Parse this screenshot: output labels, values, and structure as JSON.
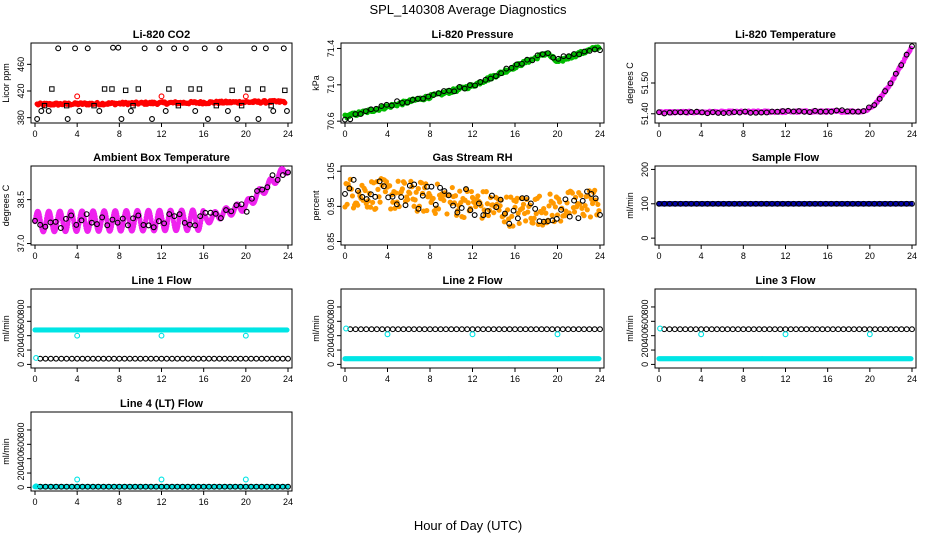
{
  "figure": {
    "title": "SPL_140308  Average Diagnostics",
    "xlabel": "Hour of Day (UTC)"
  },
  "chart_data": [
    {
      "type": "scatter",
      "title": "Li-820 CO2",
      "xlabel": "",
      "ylabel": "Licor ppm",
      "xlim": [
        0,
        24
      ],
      "ylim": [
        372,
        492
      ],
      "xticks": [
        "0",
        "4",
        "8",
        "12",
        "16",
        "20",
        "24"
      ],
      "yticks": [
        {
          "value": 380,
          "label": "380"
        },
        {
          "value": 420,
          "label": "420"
        },
        {
          "value": 460,
          "label": "460"
        }
      ],
      "series": [
        {
          "kind": "dense",
          "color": "#ff0000",
          "marker": "filled-circle",
          "x": [
            0.2,
            23.8
          ],
          "y": [
            400,
            404
          ],
          "noise": 2
        },
        {
          "kind": "points",
          "color": "#000000",
          "marker": "open-circle",
          "x": [
            2.2,
            3.8,
            5.0,
            7.4,
            7.9,
            10.4,
            11.8,
            13.2,
            14.3,
            16.1,
            17.5,
            20.8,
            21.9,
            23.6,
            0.6,
            1.3,
            4.2,
            6.1,
            9.1,
            12.4,
            15.2,
            18.3,
            22.6,
            23.9,
            0.2,
            3.1,
            8.2,
            11.1,
            16.4,
            19.2,
            21.2
          ],
          "y": [
            484,
            484,
            484,
            485,
            485,
            484,
            484,
            484,
            484,
            484,
            484,
            484,
            484,
            484,
            390,
            390,
            390,
            390,
            390,
            390,
            390,
            390,
            390,
            390,
            378,
            378,
            378,
            378,
            378,
            378,
            378
          ]
        },
        {
          "kind": "points",
          "color": "#000000",
          "marker": "open-square",
          "x": [
            1.6,
            6.6,
            7.3,
            8.6,
            9.8,
            12.7,
            14.8,
            15.6,
            18.7,
            20.2,
            21.6,
            23.7,
            0.9,
            3.0,
            5.6,
            9.3,
            13.6,
            17.2,
            19.6,
            22.4
          ],
          "y": [
            423,
            423,
            423,
            421,
            423,
            423,
            423,
            423,
            421,
            423,
            423,
            421,
            398,
            398,
            398,
            398,
            398,
            398,
            398,
            398
          ]
        },
        {
          "kind": "points",
          "color": "#ff0000",
          "marker": "open-circle",
          "x": [
            4.0,
            12.0,
            20.0
          ],
          "y": [
            412,
            412,
            412
          ]
        }
      ]
    },
    {
      "type": "scatter",
      "title": "Li-820 Pressure",
      "xlabel": "",
      "ylabel": "kPa",
      "xlim": [
        0,
        24
      ],
      "ylim": [
        70.58,
        71.46
      ],
      "xticks": [
        "0",
        "4",
        "8",
        "12",
        "16",
        "20",
        "24"
      ],
      "yticks": [
        {
          "value": 70.6,
          "label": "70.6"
        },
        {
          "value": 71.0,
          "label": "71.0"
        },
        {
          "value": 71.4,
          "label": "71.4"
        }
      ],
      "series": [
        {
          "kind": "dense",
          "color": "#00bb00",
          "marker": "filled-circle",
          "x": [
            0,
            4,
            8,
            12,
            16,
            19,
            20,
            21,
            24
          ],
          "y": [
            70.65,
            70.76,
            70.87,
            70.99,
            71.2,
            71.35,
            71.25,
            71.3,
            71.42
          ],
          "noise": 0.02
        },
        {
          "kind": "sparse",
          "color": "#000000",
          "marker": "open-circle",
          "x": [
            0,
            4,
            8,
            12,
            16,
            19,
            20,
            21,
            24
          ],
          "y": [
            70.62,
            70.78,
            70.88,
            71.0,
            71.2,
            71.36,
            71.27,
            71.32,
            71.4
          ],
          "n": 50,
          "noise": 0.02
        }
      ]
    },
    {
      "type": "scatter",
      "title": "Li-820 Temperature",
      "xlabel": "",
      "ylabel": "degrees C",
      "xlim": [
        0,
        24
      ],
      "ylim": [
        51.37,
        51.63
      ],
      "xticks": [
        "0",
        "4",
        "8",
        "12",
        "16",
        "20",
        "24"
      ],
      "yticks": [
        {
          "value": 51.4,
          "label": "51.40"
        },
        {
          "value": 51.5,
          "label": "51.50"
        }
      ],
      "series": [
        {
          "kind": "dense",
          "color": "#ee22ee",
          "marker": "filled-circle",
          "x": [
            0,
            19.5,
            20.5,
            22,
            23,
            24
          ],
          "y": [
            51.405,
            51.408,
            51.43,
            51.5,
            51.56,
            51.62
          ],
          "noise": 0.003
        },
        {
          "kind": "sparse",
          "color": "#000000",
          "marker": "open-circle",
          "x": [
            0,
            19.5,
            20.5,
            22,
            23,
            24
          ],
          "y": [
            51.403,
            51.41,
            51.43,
            51.5,
            51.56,
            51.62
          ],
          "n": 48,
          "noise": 0.003
        }
      ]
    },
    {
      "type": "scatter",
      "title": "Ambient Box Temperature",
      "xlabel": "",
      "ylabel": "degrees C",
      "xlim": [
        0,
        24
      ],
      "ylim": [
        36.95,
        39.65
      ],
      "xticks": [
        "0",
        "4",
        "8",
        "12",
        "16",
        "20",
        "24"
      ],
      "yticks": [
        {
          "value": 37.0,
          "label": "37.0"
        },
        {
          "value": 38.5,
          "label": "38.5"
        }
      ],
      "series": [
        {
          "kind": "wave",
          "color": "#ee22ee",
          "marker": "filled-circle",
          "x": [
            0,
            16,
            20,
            24
          ],
          "y": [
            37.75,
            37.8,
            38.3,
            39.6
          ],
          "amplitude": 0.35,
          "period": 1.05,
          "damp_after": 16
        },
        {
          "kind": "sparse",
          "color": "#000000",
          "marker": "open-circle",
          "x": [
            0,
            16,
            20,
            24
          ],
          "y": [
            37.75,
            37.8,
            38.3,
            39.6
          ],
          "n": 50,
          "noise": 0.25
        }
      ]
    },
    {
      "type": "scatter",
      "title": "Gas Stream RH",
      "xlabel": "",
      "ylabel": "percent",
      "xlim": [
        0,
        24
      ],
      "ylim": [
        0.84,
        1.065
      ],
      "xticks": [
        "0",
        "4",
        "8",
        "12",
        "16",
        "20",
        "24"
      ],
      "yticks": [
        {
          "value": 0.85,
          "label": "0.85"
        },
        {
          "value": 0.95,
          "label": "0.95"
        },
        {
          "value": 1.05,
          "label": "1.05"
        }
      ],
      "series": [
        {
          "kind": "dense",
          "color": "#ff9900",
          "marker": "filled-circle",
          "x": [
            0,
            6,
            12,
            16,
            20,
            24
          ],
          "y": [
            0.99,
            0.98,
            0.96,
            0.935,
            0.945,
            0.965
          ],
          "noise": 0.045
        },
        {
          "kind": "sparse",
          "color": "#000000",
          "marker": "open-circle",
          "x": [
            0,
            6,
            12,
            16,
            20,
            24
          ],
          "y": [
            0.99,
            0.98,
            0.96,
            0.935,
            0.945,
            0.965
          ],
          "n": 60,
          "noise": 0.04
        }
      ]
    },
    {
      "type": "scatter",
      "title": "Sample Flow",
      "xlabel": "",
      "ylabel": "ml/min",
      "xlim": [
        0,
        24
      ],
      "ylim": [
        -20,
        210
      ],
      "xticks": [
        "0",
        "4",
        "8",
        "12",
        "16",
        "20",
        "24"
      ],
      "yticks": [
        {
          "value": 0,
          "label": "0"
        },
        {
          "value": 100,
          "label": "100"
        },
        {
          "value": 200,
          "label": "200"
        }
      ],
      "series": [
        {
          "kind": "dense",
          "color": "#0000aa",
          "marker": "filled-circle",
          "x": [
            0,
            24
          ],
          "y": [
            100,
            100
          ],
          "noise": 0
        },
        {
          "kind": "sparse",
          "color": "#000000",
          "marker": "open-circle",
          "x": [
            0,
            24
          ],
          "y": [
            100,
            100
          ],
          "n": 48,
          "noise": 0
        }
      ]
    },
    {
      "type": "scatter",
      "title": "Line 1 Flow",
      "xlabel": "",
      "ylabel": "ml/min",
      "xlim": [
        0,
        24
      ],
      "ylim": [
        -50,
        1050
      ],
      "xticks": [
        "0",
        "4",
        "8",
        "12",
        "16",
        "20",
        "24"
      ],
      "yticks": [
        {
          "value": 0,
          "label": "0"
        },
        {
          "value": 200,
          "label": "200"
        },
        {
          "value": 400,
          "label": "400"
        },
        {
          "value": 600,
          "label": "600"
        },
        {
          "value": 800,
          "label": "800"
        }
      ],
      "series": [
        {
          "kind": "dense",
          "color": "#00e5e5",
          "marker": "filled-circle",
          "x": [
            0,
            24
          ],
          "y": [
            480,
            480
          ],
          "noise": 0
        },
        {
          "kind": "sparse",
          "color": "#000000",
          "marker": "open-circle",
          "x": [
            0.5,
            24
          ],
          "y": [
            80,
            80
          ],
          "n": 48,
          "noise": 0
        },
        {
          "kind": "points",
          "color": "#00e5e5",
          "marker": "open-circle",
          "x": [
            0.1,
            4.0,
            12.0,
            20.0
          ],
          "y": [
            90,
            400,
            400,
            400
          ]
        }
      ]
    },
    {
      "type": "scatter",
      "title": "Line 2 Flow",
      "xlabel": "",
      "ylabel": "ml/min",
      "xlim": [
        0,
        24
      ],
      "ylim": [
        -50,
        1050
      ],
      "xticks": [
        "0",
        "4",
        "8",
        "12",
        "16",
        "20",
        "24"
      ],
      "yticks": [
        {
          "value": 0,
          "label": "0"
        },
        {
          "value": 200,
          "label": "200"
        },
        {
          "value": 400,
          "label": "400"
        },
        {
          "value": 600,
          "label": "600"
        },
        {
          "value": 800,
          "label": "800"
        }
      ],
      "series": [
        {
          "kind": "dense",
          "color": "#00e5e5",
          "marker": "filled-circle",
          "x": [
            0,
            24
          ],
          "y": [
            80,
            80
          ],
          "noise": 0
        },
        {
          "kind": "sparse",
          "color": "#000000",
          "marker": "open-circle",
          "x": [
            0.5,
            24
          ],
          "y": [
            490,
            490
          ],
          "n": 48,
          "noise": 0
        },
        {
          "kind": "points",
          "color": "#00e5e5",
          "marker": "open-circle",
          "x": [
            0.1,
            4.0,
            12.0,
            20.0
          ],
          "y": [
            500,
            420,
            420,
            420
          ]
        }
      ]
    },
    {
      "type": "scatter",
      "title": "Line 3 Flow",
      "xlabel": "",
      "ylabel": "ml/min",
      "xlim": [
        0,
        24
      ],
      "ylim": [
        -50,
        1050
      ],
      "xticks": [
        "0",
        "4",
        "8",
        "12",
        "16",
        "20",
        "24"
      ],
      "yticks": [
        {
          "value": 0,
          "label": "0"
        },
        {
          "value": 200,
          "label": "200"
        },
        {
          "value": 400,
          "label": "400"
        },
        {
          "value": 600,
          "label": "600"
        },
        {
          "value": 800,
          "label": "800"
        }
      ],
      "series": [
        {
          "kind": "dense",
          "color": "#00e5e5",
          "marker": "filled-circle",
          "x": [
            0,
            24
          ],
          "y": [
            80,
            80
          ],
          "noise": 0
        },
        {
          "kind": "sparse",
          "color": "#000000",
          "marker": "open-circle",
          "x": [
            0.5,
            24
          ],
          "y": [
            490,
            490
          ],
          "n": 48,
          "noise": 0
        },
        {
          "kind": "points",
          "color": "#00e5e5",
          "marker": "open-circle",
          "x": [
            0.1,
            4.0,
            12.0,
            20.0
          ],
          "y": [
            500,
            420,
            420,
            420
          ]
        }
      ]
    },
    {
      "type": "scatter",
      "title": "Line 4 (LT) Flow",
      "xlabel": "",
      "ylabel": "ml/min",
      "xlim": [
        0,
        24
      ],
      "ylim": [
        -50,
        1050
      ],
      "xticks": [
        "0",
        "4",
        "8",
        "12",
        "16",
        "20",
        "24"
      ],
      "yticks": [
        {
          "value": 0,
          "label": "0"
        },
        {
          "value": 200,
          "label": "200"
        },
        {
          "value": 400,
          "label": "400"
        },
        {
          "value": 600,
          "label": "600"
        },
        {
          "value": 800,
          "label": "800"
        }
      ],
      "series": [
        {
          "kind": "dense",
          "color": "#00e5e5",
          "marker": "filled-circle",
          "x": [
            0,
            24
          ],
          "y": [
            10,
            10
          ],
          "noise": 0
        },
        {
          "kind": "sparse",
          "color": "#000000",
          "marker": "open-circle",
          "x": [
            0.5,
            24
          ],
          "y": [
            10,
            10
          ],
          "n": 48,
          "noise": 0
        },
        {
          "kind": "points",
          "color": "#00e5e5",
          "marker": "open-circle",
          "x": [
            0.1,
            4.0,
            12.0,
            20.0
          ],
          "y": [
            15,
            110,
            110,
            110
          ]
        }
      ]
    }
  ]
}
